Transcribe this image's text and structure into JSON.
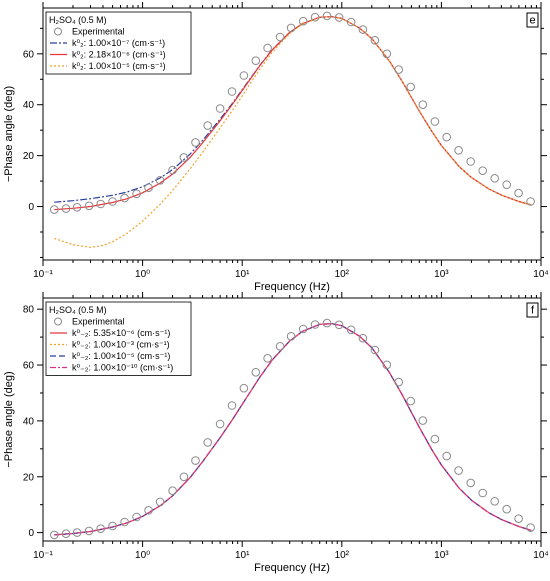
{
  "chart_data": [
    {
      "type": "line",
      "panel_label": "e",
      "legend_title": "H₂SO₄ (0.5 M)",
      "xlabel": "Frequency (Hz)",
      "ylabel": "−Phase angle (deg)",
      "x_scale": "log",
      "xlim": [
        0.1,
        10000
      ],
      "ylim": [
        -21,
        78
      ],
      "yticks": [
        0,
        20,
        40,
        60
      ],
      "xticks": [
        "10⁻¹",
        "10⁰",
        "10¹",
        "10²",
        "10³",
        "10⁴"
      ],
      "legend_placement": "top-left",
      "experimental": {
        "name": "Experimental",
        "color": "#8a8a8a",
        "x": [
          0.13,
          0.17,
          0.22,
          0.29,
          0.38,
          0.5,
          0.66,
          0.87,
          1.15,
          1.5,
          2.0,
          2.6,
          3.4,
          4.5,
          6.0,
          7.9,
          10.4,
          13.7,
          18,
          24,
          31,
          41,
          54,
          71,
          94,
          124,
          163,
          215,
          283,
          373,
          492,
          650,
          860,
          1130,
          1490,
          1970,
          2600,
          3430,
          4520,
          5960,
          7860
        ],
        "y": [
          -1.2,
          -0.8,
          -0.3,
          0.3,
          1.0,
          2.0,
          3.3,
          5.0,
          7.4,
          10.3,
          14.3,
          19.3,
          25.2,
          31.8,
          38.5,
          45.2,
          51.5,
          57.3,
          62.3,
          66.6,
          70.2,
          72.8,
          74.4,
          74.9,
          74.3,
          72.5,
          69.5,
          65.3,
          60.0,
          53.8,
          47.0,
          40.0,
          33.4,
          27.3,
          22.1,
          17.7,
          14.1,
          11.1,
          8.6,
          5.3,
          2.0
        ]
      },
      "series": [
        {
          "name": "k⁰₂: 1.00×10⁻⁷ (cm·s⁻¹)",
          "color": "#2b3f9e",
          "dash": "7,2,2,2",
          "x": [
            0.13,
            0.2,
            0.3,
            0.5,
            0.7,
            1,
            1.5,
            2,
            3,
            4,
            6,
            8,
            10,
            15,
            20,
            30,
            40,
            60,
            80,
            100,
            150,
            200,
            300,
            400,
            600,
            800,
            1000,
            1500,
            2000,
            3000,
            4000,
            6000,
            8000
          ],
          "y": [
            1.7,
            2.3,
            3.1,
            4.4,
            5.7,
            7.8,
            11.2,
            14.5,
            20.6,
            26.0,
            34.3,
            40.6,
            45.9,
            55.4,
            61.6,
            68.4,
            71.8,
            74.4,
            74.6,
            73.9,
            70.2,
            66.0,
            57.2,
            49.4,
            37.5,
            29.6,
            24.0,
            15.8,
            11.4,
            6.9,
            4.5,
            2.0,
            0.6
          ]
        },
        {
          "name": "k⁰₂: 2.18×10⁻⁶ (cm·s⁻¹)",
          "color": "#e8363a",
          "dash": "",
          "x": [
            0.13,
            0.2,
            0.3,
            0.5,
            0.7,
            1,
            1.5,
            2,
            3,
            4,
            6,
            8,
            10,
            15,
            20,
            30,
            40,
            60,
            80,
            100,
            150,
            200,
            300,
            400,
            600,
            800,
            1000,
            1500,
            2000,
            3000,
            4000,
            6000,
            8000
          ],
          "y": [
            -1.2,
            -0.7,
            0.0,
            1.6,
            3.1,
            5.4,
            9.2,
            12.8,
            19.3,
            25.0,
            33.7,
            40.2,
            45.6,
            55.3,
            61.5,
            68.4,
            71.8,
            74.4,
            74.6,
            73.9,
            70.2,
            66.0,
            57.2,
            49.4,
            37.5,
            29.6,
            24.0,
            15.8,
            11.4,
            6.9,
            4.5,
            2.0,
            0.6
          ]
        },
        {
          "name": "k⁰₂: 1.00×10⁻⁵ (cm·s⁻¹)",
          "color": "#f2a12b",
          "dash": "2,2",
          "x": [
            0.13,
            0.2,
            0.3,
            0.4,
            0.5,
            0.7,
            1,
            1.5,
            2,
            3,
            4,
            6,
            8,
            10,
            15,
            20,
            30,
            40,
            60,
            80,
            100,
            150,
            200,
            300,
            400,
            600,
            800,
            1000,
            1500,
            2000,
            3000,
            4000,
            6000,
            8000
          ],
          "y": [
            -12.5,
            -15.0,
            -16.0,
            -15.3,
            -13.8,
            -10.5,
            -5.7,
            0.9,
            6.3,
            14.8,
            21.3,
            30.9,
            37.8,
            43.5,
            53.9,
            60.6,
            68.0,
            71.6,
            74.3,
            74.6,
            73.9,
            70.2,
            66.0,
            57.2,
            49.4,
            37.5,
            29.6,
            24.0,
            15.8,
            11.4,
            6.9,
            4.5,
            2.0,
            0.6
          ]
        }
      ]
    },
    {
      "type": "line",
      "panel_label": "f",
      "legend_title": "H₂SO₄ (0.5 M)",
      "xlabel": "Frequency (Hz)",
      "ylabel": "−Phase angle (deg)",
      "x_scale": "log",
      "xlim": [
        0.1,
        10000
      ],
      "ylim": [
        -3,
        84
      ],
      "yticks": [
        0,
        20,
        40,
        60,
        80
      ],
      "xticks": [
        "10⁻¹",
        "10⁰",
        "10¹",
        "10²",
        "10³",
        "10⁴"
      ],
      "legend_placement": "top-left",
      "experimental": {
        "name": "Experimental",
        "color": "#8a8a8a",
        "x": [
          0.13,
          0.17,
          0.22,
          0.29,
          0.38,
          0.5,
          0.66,
          0.87,
          1.15,
          1.5,
          2.0,
          2.6,
          3.4,
          4.5,
          6.0,
          7.9,
          10.4,
          13.7,
          18,
          24,
          31,
          41,
          54,
          71,
          94,
          124,
          163,
          215,
          283,
          373,
          492,
          650,
          860,
          1130,
          1490,
          1970,
          2600,
          3430,
          4520,
          5960,
          7860
        ],
        "y": [
          -0.8,
          -0.4,
          0.0,
          0.6,
          1.4,
          2.4,
          3.8,
          5.6,
          8.0,
          11.0,
          15.0,
          20.0,
          25.8,
          32.3,
          38.9,
          45.5,
          51.7,
          57.4,
          62.4,
          66.7,
          70.3,
          72.9,
          74.5,
          75.0,
          74.4,
          72.6,
          69.6,
          65.4,
          60.1,
          53.9,
          47.1,
          40.1,
          33.5,
          27.4,
          22.2,
          17.8,
          14.2,
          11.2,
          8.4,
          5.0,
          1.8
        ]
      },
      "series": [
        {
          "name": "k⁰₋₂: 5.35×10⁻⁶ (cm·s⁻¹)",
          "color": "#e8363a",
          "dash": "",
          "x": [
            0.13,
            0.2,
            0.3,
            0.5,
            0.7,
            1,
            1.5,
            2,
            3,
            4,
            6,
            8,
            10,
            15,
            20,
            30,
            40,
            60,
            80,
            100,
            150,
            200,
            300,
            400,
            600,
            800,
            1000,
            1500,
            2000,
            3000,
            4000,
            6000,
            8000
          ],
          "y": [
            -0.8,
            -0.3,
            0.4,
            2.0,
            3.5,
            5.8,
            9.6,
            13.2,
            19.7,
            25.4,
            34.0,
            40.5,
            45.9,
            55.6,
            61.8,
            68.6,
            72.0,
            74.6,
            74.8,
            74.1,
            70.4,
            66.2,
            57.4,
            49.6,
            37.7,
            29.8,
            24.2,
            16.0,
            11.6,
            7.1,
            4.7,
            2.2,
            0.8
          ]
        },
        {
          "name": "k⁰₋₂: 1.00×10⁻³ (cm·s⁻¹)",
          "color": "#f2a12b",
          "dash": "2,2",
          "x": [
            0.13,
            0.2,
            0.3,
            0.5,
            0.7,
            1,
            1.5,
            2,
            3,
            4,
            6,
            8,
            10,
            15,
            20,
            30,
            40,
            60,
            80,
            100,
            150,
            200,
            300,
            400,
            600,
            800,
            1000,
            1500,
            2000,
            3000,
            4000,
            6000,
            8000
          ],
          "y": [
            -0.8,
            -0.3,
            0.4,
            2.0,
            3.5,
            5.8,
            9.6,
            13.2,
            19.7,
            25.4,
            34.0,
            40.5,
            45.9,
            55.6,
            61.8,
            68.6,
            72.0,
            74.6,
            74.8,
            74.1,
            70.4,
            66.2,
            57.4,
            49.6,
            37.7,
            29.8,
            24.2,
            16.0,
            11.6,
            7.1,
            4.7,
            2.2,
            0.8
          ]
        },
        {
          "name": "k⁰₋₂: 1.00×10⁻⁵ (cm·s⁻¹)",
          "color": "#2b3f9e",
          "dash": "6,3",
          "x": [
            0.13,
            0.2,
            0.3,
            0.5,
            0.7,
            1,
            1.5,
            2,
            3,
            4,
            6,
            8,
            10,
            15,
            20,
            30,
            40,
            60,
            80,
            100,
            150,
            200,
            300,
            400,
            600,
            800,
            1000,
            1500,
            2000,
            3000,
            4000,
            6000,
            8000
          ],
          "y": [
            -0.8,
            -0.3,
            0.4,
            2.0,
            3.5,
            5.8,
            9.6,
            13.2,
            19.7,
            25.4,
            34.0,
            40.5,
            45.9,
            55.6,
            61.8,
            68.6,
            72.0,
            74.6,
            74.8,
            74.1,
            70.4,
            66.2,
            57.4,
            49.6,
            37.7,
            29.8,
            24.2,
            16.0,
            11.6,
            7.1,
            4.7,
            2.2,
            0.8
          ]
        },
        {
          "name": "k⁰₋₂: 1.00×10⁻¹⁰ (cm·s⁻¹)",
          "color": "#d6338c",
          "dash": "6,2,2,2",
          "x": [
            0.13,
            0.2,
            0.3,
            0.5,
            0.7,
            1,
            1.5,
            2,
            3,
            4,
            6,
            8,
            10,
            15,
            20,
            30,
            40,
            60,
            80,
            100,
            150,
            200,
            300,
            400,
            600,
            800,
            1000,
            1500,
            2000,
            3000,
            4000,
            6000,
            8000
          ],
          "y": [
            -0.8,
            -0.3,
            0.4,
            2.0,
            3.5,
            5.8,
            9.6,
            13.2,
            19.7,
            25.4,
            34.0,
            40.5,
            45.9,
            55.6,
            61.8,
            68.6,
            72.0,
            74.6,
            74.8,
            74.1,
            70.4,
            66.2,
            57.4,
            49.6,
            37.7,
            29.8,
            24.2,
            16.0,
            11.6,
            7.1,
            4.7,
            2.2,
            0.8
          ]
        }
      ]
    }
  ]
}
